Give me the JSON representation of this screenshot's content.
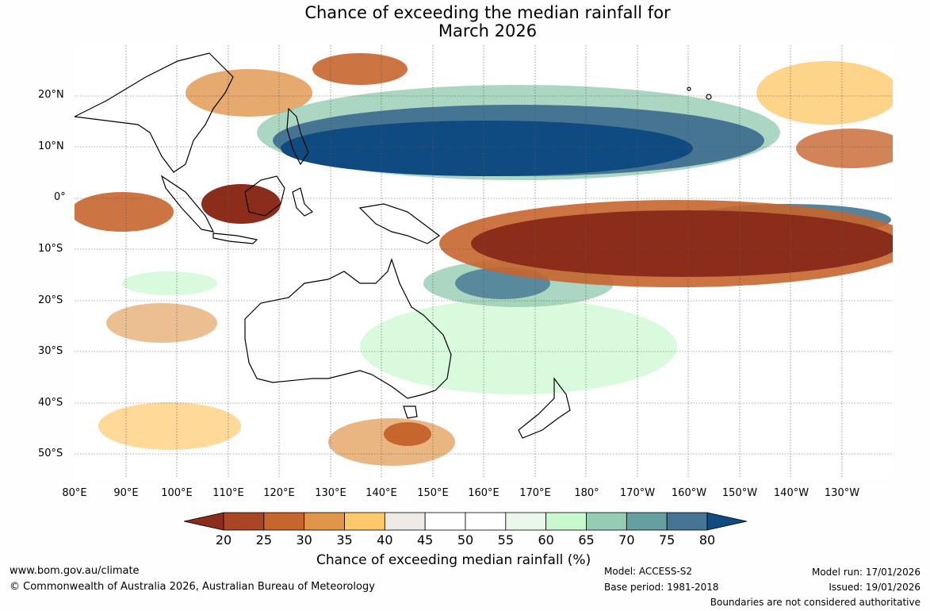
{
  "title": {
    "line1": "Chance of exceeding the median rainfall for",
    "line2": "March 2026"
  },
  "lat_labels": [
    "20°N",
    "10°N",
    "0°",
    "10°S",
    "20°S",
    "30°S",
    "40°S",
    "50°S"
  ],
  "lon_labels": [
    "80°E",
    "90°E",
    "100°E",
    "110°E",
    "120°E",
    "130°E",
    "140°E",
    "150°E",
    "160°E",
    "170°E",
    "180°",
    "170°W",
    "160°W",
    "150°W",
    "140°W",
    "130°W"
  ],
  "colorbar": {
    "ticks": [
      "20",
      "25",
      "30",
      "35",
      "40",
      "45",
      "50",
      "55",
      "60",
      "65",
      "70",
      "75",
      "80"
    ],
    "colors": [
      "#8c2d1c",
      "#a84626",
      "#c7652e",
      "#e0954a",
      "#fdc96b",
      "#eeebe6",
      "#ffffff",
      "#ffffff",
      "#eaf7ea",
      "#c9f8ce",
      "#96ccb3",
      "#659fa1",
      "#457592",
      "#0f4a80"
    ],
    "label": "Chance of exceeding median rainfall (%)"
  },
  "footer": {
    "website": "www.bom.gov.au/climate",
    "copyright": "© Commonwealth of Australia 2026, Australian Bureau of Meteorology",
    "model": "Model: ACCESS-S2",
    "base_period": "Base period: 1981-2018",
    "model_run": "Model run: 17/01/2026",
    "issued": "Issued: 19/01/2026",
    "disclaimer": "Boundaries are not considered authoritative"
  }
}
